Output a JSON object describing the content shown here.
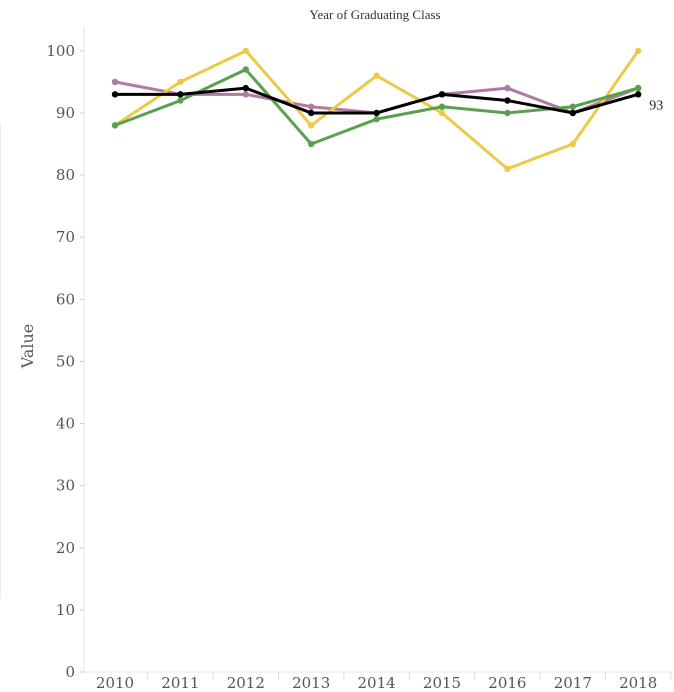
{
  "chart_data": {
    "type": "line",
    "title": "Year of Graduating Class",
    "xlabel": "",
    "ylabel": "Value",
    "ylim": [
      0,
      104
    ],
    "yticks": [
      0,
      10,
      20,
      30,
      40,
      50,
      60,
      70,
      80,
      90,
      100
    ],
    "grid": false,
    "categories": [
      "2010",
      "2011",
      "2012",
      "2013",
      "2014",
      "2015",
      "2016",
      "2017",
      "2018"
    ],
    "series": [
      {
        "color": "#b07aa1",
        "values": [
          95,
          93,
          93,
          91,
          90,
          93,
          94,
          90,
          94
        ]
      },
      {
        "color": "#edc948",
        "values": [
          88,
          95,
          100,
          88,
          96,
          90,
          81,
          85,
          100
        ]
      },
      {
        "color": "#59a14f",
        "values": [
          88,
          92,
          97,
          85,
          89,
          91,
          90,
          91,
          94
        ]
      },
      {
        "color": "#000000",
        "values": [
          93,
          93,
          94,
          90,
          90,
          93,
          92,
          90,
          93
        ],
        "end_label": "93"
      }
    ]
  }
}
